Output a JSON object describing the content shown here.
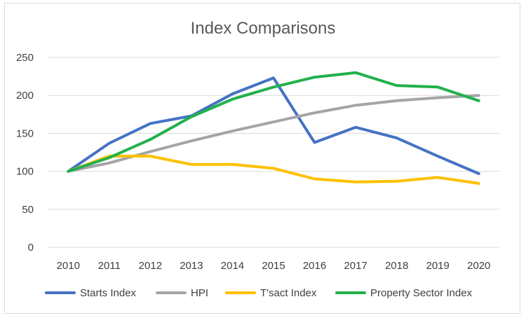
{
  "chart_data": {
    "type": "line",
    "title": "Index Comparisons",
    "xlabel": "",
    "ylabel": "",
    "x": [
      "2010",
      "2011",
      "2012",
      "2013",
      "2014",
      "2015",
      "2016",
      "2017",
      "2018",
      "2019",
      "2020"
    ],
    "ylim": [
      0,
      250
    ],
    "yticks": [
      0,
      50,
      100,
      150,
      200,
      250
    ],
    "grid": true,
    "legend_position": "bottom",
    "series": [
      {
        "name": "Starts Index",
        "color": "#4472c4",
        "values": [
          100,
          137,
          163,
          173,
          202,
          223,
          138,
          158,
          144,
          120,
          97
        ]
      },
      {
        "name": "HPI",
        "color": "#a5a5a5",
        "values": [
          100,
          111,
          126,
          140,
          153,
          165,
          177,
          187,
          193,
          197,
          200
        ]
      },
      {
        "name": "T'sact Index",
        "color": "#ffc000",
        "values": [
          100,
          120,
          120,
          109,
          109,
          104,
          90,
          86,
          87,
          92,
          84
        ]
      },
      {
        "name": "Property Sector Index",
        "color": "#22b14c",
        "values": [
          100,
          118,
          142,
          172,
          195,
          211,
          224,
          230,
          213,
          211,
          193
        ]
      }
    ]
  }
}
